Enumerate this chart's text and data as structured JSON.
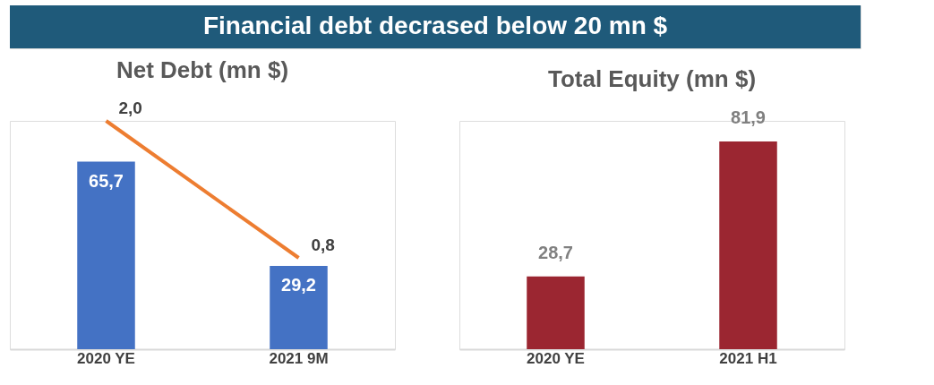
{
  "chart_data": [
    {
      "type": "bar",
      "title": "Net Debt (mn $)",
      "annotations": [
        "Financial debt decrased below 20 mn $"
      ],
      "categories": [
        "2020 YE",
        "2021 9M"
      ],
      "ylim": [
        0,
        80
      ],
      "tick_labels": "x",
      "series": [
        {
          "color": "#4472c4",
          "values": [
            65.7,
            29.2
          ],
          "value_labels": [
            "65,7",
            "29,2"
          ]
        },
        {
          "type": "line",
          "axis": "y2",
          "color": "#ed7d31",
          "values": [
            2.0,
            0.8
          ],
          "value_labels": [
            "2,0",
            "0,8"
          ]
        }
      ]
    },
    {
      "type": "bar",
      "title": "Total Equity (mn $)",
      "categories": [
        "2020 YE",
        "2021 H1"
      ],
      "ylim": [
        0,
        90
      ],
      "tick_labels": "x",
      "series": [
        {
          "color": "#9b2631",
          "values": [
            28.7,
            81.9
          ],
          "value_labels": [
            "28,7",
            "81,9"
          ]
        }
      ]
    }
  ]
}
